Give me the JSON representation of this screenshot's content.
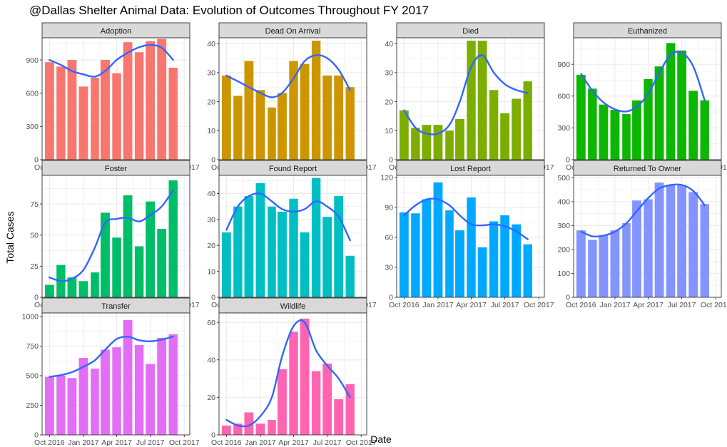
{
  "figure": {
    "title": "@Dallas Shelter Animal Data: Evolution of Outcomes Throughout FY 2017",
    "xlabel": "Date",
    "ylabel": "Total Cases",
    "smooth_color": "#3366FF",
    "strip_color": "#D9D9D9",
    "grid_color": "#EBEBEB"
  },
  "chart_data": {
    "type": "bar",
    "layout": "facet_wrap",
    "ncol": 4,
    "months": [
      "2016-10",
      "2016-11",
      "2016-12",
      "2017-01",
      "2017-02",
      "2017-03",
      "2017-04",
      "2017-05",
      "2017-06",
      "2017-07",
      "2017-08",
      "2017-09"
    ],
    "x_ticks": [
      "Oct 2016",
      "Jan 2017",
      "Apr 2017",
      "Jul 2017",
      "Oct 2017"
    ],
    "x_tick_dates": [
      "2016-10-01",
      "2017-01-01",
      "2017-04-01",
      "2017-07-01",
      "2017-10-01"
    ],
    "smooth": true,
    "grid": true,
    "panels": [
      {
        "name": "Adoption",
        "color": "#F8766D",
        "ylim": [
          0,
          1100
        ],
        "yticks": [
          0,
          300,
          600,
          900
        ],
        "ytick_labels": [
          "0",
          "300",
          "600",
          "900"
        ],
        "values": [
          880,
          840,
          900,
          660,
          740,
          900,
          780,
          1060,
          970,
          1070,
          1090,
          830
        ],
        "smooth": [
          900,
          855,
          800,
          770,
          750,
          800,
          900,
          965,
          1015,
          1035,
          1010,
          900
        ]
      },
      {
        "name": "Dead On Arrival",
        "color": "#CD9600",
        "ylim": [
          0,
          42
        ],
        "yticks": [
          0,
          10,
          20,
          30,
          40
        ],
        "ytick_labels": [
          "0",
          "10",
          "20",
          "30",
          "40"
        ],
        "values": [
          29,
          22,
          34,
          24,
          18,
          23,
          34,
          33,
          41,
          29,
          29,
          25
        ],
        "smooth": [
          29,
          27,
          25,
          23,
          21.5,
          23,
          28,
          34,
          36,
          35,
          31,
          24
        ]
      },
      {
        "name": "Died",
        "color": "#7CAE00",
        "ylim": [
          0,
          42
        ],
        "yticks": [
          0,
          10,
          20,
          30,
          40
        ],
        "ytick_labels": [
          "0",
          "10",
          "20",
          "30",
          "40"
        ],
        "values": [
          17,
          11,
          12,
          12,
          10,
          14,
          41,
          41,
          24,
          16,
          21,
          27
        ],
        "smooth": [
          17,
          11,
          9,
          9,
          12,
          20,
          32,
          36,
          30,
          26,
          24,
          23
        ]
      },
      {
        "name": "Euthanized",
        "color": "#0CB702",
        "ylim": [
          0,
          1150
        ],
        "yticks": [
          0,
          300,
          600,
          900
        ],
        "ytick_labels": [
          "0",
          "300",
          "600",
          "900"
        ],
        "values": [
          800,
          670,
          520,
          470,
          430,
          560,
          760,
          880,
          1100,
          1030,
          650,
          560
        ],
        "smooth": [
          810,
          650,
          540,
          475,
          455,
          500,
          620,
          820,
          990,
          1010,
          880,
          560
        ]
      },
      {
        "name": "Foster",
        "color": "#00BE67",
        "ylim": [
          0,
          98
        ],
        "yticks": [
          0,
          25,
          50,
          75
        ],
        "ytick_labels": [
          "0",
          "25",
          "50",
          "75"
        ],
        "values": [
          10,
          26,
          16,
          13,
          20,
          68,
          48,
          82,
          41,
          77,
          55,
          94
        ],
        "smooth": [
          16,
          13,
          15,
          22,
          40,
          60,
          63,
          64,
          61,
          66,
          73,
          86
        ]
      },
      {
        "name": "Found Report",
        "color": "#00BFC4",
        "ylim": [
          0,
          47
        ],
        "yticks": [
          0,
          10,
          20,
          30,
          40
        ],
        "ytick_labels": [
          "0",
          "10",
          "20",
          "30",
          "40"
        ],
        "values": [
          25,
          35,
          39,
          44,
          35,
          33,
          38,
          25,
          46,
          31,
          39,
          16
        ],
        "smooth": [
          26,
          35,
          39,
          40,
          37,
          34,
          33,
          34,
          37,
          35,
          31,
          22
        ]
      },
      {
        "name": "Lost Report",
        "color": "#00A9FF",
        "ylim": [
          0,
          122
        ],
        "yticks": [
          0,
          30,
          60,
          90,
          120
        ],
        "ytick_labels": [
          "0",
          "30",
          "60",
          "90",
          "120"
        ],
        "values": [
          85,
          84,
          98,
          115,
          87,
          67,
          100,
          50,
          76,
          82,
          73,
          53
        ],
        "smooth": [
          82,
          92,
          98,
          98,
          92,
          82,
          73,
          72,
          73,
          71,
          66,
          58
        ]
      },
      {
        "name": "Returned To Owner",
        "color": "#8494FF",
        "ylim": [
          0,
          510
        ],
        "yticks": [
          0,
          100,
          200,
          300,
          400,
          500
        ],
        "ytick_labels": [
          "0",
          "100",
          "200",
          "300",
          "400",
          "500"
        ],
        "values": [
          280,
          240,
          260,
          280,
          310,
          405,
          410,
          480,
          470,
          470,
          440,
          390
        ],
        "smooth": [
          275,
          255,
          258,
          275,
          310,
          360,
          415,
          455,
          470,
          470,
          445,
          385
        ]
      },
      {
        "name": "Transfer",
        "color": "#E36EF6",
        "ylim": [
          0,
          1030
        ],
        "yticks": [
          0,
          250,
          500,
          750,
          1000
        ],
        "ytick_labels": [
          "0",
          "250",
          "500",
          "750",
          "1000"
        ],
        "values": [
          490,
          500,
          480,
          650,
          560,
          720,
          740,
          970,
          760,
          600,
          820,
          850
        ],
        "smooth": [
          490,
          505,
          530,
          575,
          630,
          720,
          810,
          830,
          800,
          790,
          805,
          830
        ]
      },
      {
        "name": "Wildlife",
        "color": "#FF64B0",
        "ylim": [
          0,
          65
        ],
        "yticks": [
          0,
          20,
          40,
          60
        ],
        "ytick_labels": [
          "0",
          "20",
          "40",
          "60"
        ],
        "values": [
          5,
          6,
          12,
          6,
          8,
          35,
          55,
          62,
          34,
          38,
          19,
          27
        ],
        "smooth": [
          8,
          5,
          5,
          10,
          20,
          42,
          58,
          60,
          45,
          37,
          30,
          20
        ]
      }
    ]
  }
}
